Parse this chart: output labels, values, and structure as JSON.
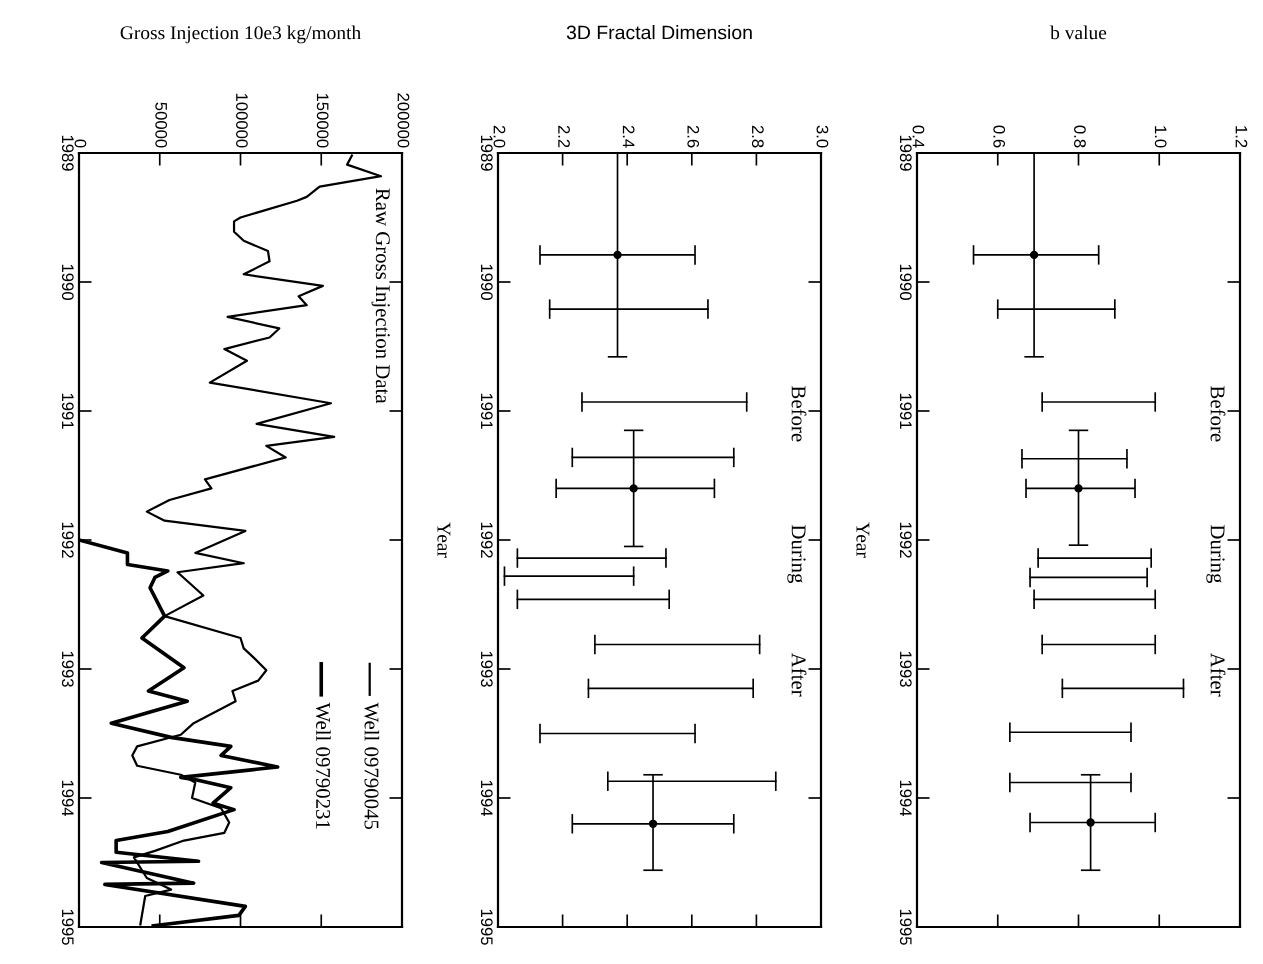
{
  "chart_data": [
    {
      "type": "line",
      "title": "Gross Injection 10e3 kg/month",
      "xlim": [
        0,
        200000
      ],
      "xticks": [
        0,
        50000,
        100000,
        150000,
        200000
      ],
      "ylim": [
        1995,
        1989
      ],
      "yticks": [
        1989,
        1990,
        1991,
        1992,
        1993,
        1994,
        1995
      ],
      "legend": "bottom right",
      "annotations": [
        "Raw Gross Injection Data"
      ],
      "series": [
        {
          "name": "Well 09790045",
          "color": "#000000",
          "x": [
            169000,
            166000,
            187000,
            149000,
            141000,
            135000,
            100000,
            96000,
            96000,
            102000,
            117000,
            118000,
            102000,
            151000,
            136000,
            141000,
            92000,
            124000,
            118000,
            90000,
            104000,
            81000,
            156000,
            110000,
            158000,
            116000,
            128000,
            78000,
            82000,
            56000,
            42000,
            53000,
            103000,
            72000,
            102000,
            61000,
            77000,
            53000,
            100000,
            102000,
            108000,
            116000,
            111000,
            95000,
            97000,
            71000,
            63000,
            36000,
            33000,
            36000,
            63000,
            72000,
            70000,
            88000,
            93000,
            90000,
            65000,
            47000,
            34000,
            42000,
            57000,
            41000,
            38000
          ],
          "values": [
            1989.02,
            1989.09,
            1989.18,
            1989.26,
            1989.34,
            1989.37,
            1989.5,
            1989.53,
            1989.61,
            1989.68,
            1989.76,
            1989.84,
            1989.94,
            1990.03,
            1990.11,
            1990.18,
            1990.27,
            1990.36,
            1990.43,
            1990.52,
            1990.61,
            1990.78,
            1990.94,
            1991.1,
            1991.2,
            1991.27,
            1991.36,
            1991.53,
            1991.6,
            1991.69,
            1991.78,
            1991.85,
            1991.93,
            1992.1,
            1992.18,
            1992.25,
            1992.43,
            1992.59,
            1992.76,
            1992.84,
            1992.91,
            1993.01,
            1993.09,
            1993.17,
            1993.25,
            1993.42,
            1993.51,
            1993.6,
            1993.67,
            1993.75,
            1993.82,
            1993.88,
            1994.0,
            1994.08,
            1994.19,
            1994.27,
            1994.33,
            1994.41,
            1994.46,
            1994.62,
            1994.71,
            1994.76,
            1994.98
          ]
        },
        {
          "name": "Well 09790231",
          "color": "#000000",
          "x": [
            0,
            30000,
            30000,
            55000,
            47000,
            44000,
            53000,
            39000,
            65000,
            43000,
            67000,
            20000,
            57000,
            94000,
            88000,
            123000,
            63000,
            73000,
            94000,
            83000,
            96000,
            55000,
            23000,
            23000,
            74000,
            14000,
            71000,
            16000,
            103000,
            99000,
            46000
          ],
          "values": [
            1992.0,
            1992.1,
            1992.19,
            1992.24,
            1992.29,
            1992.37,
            1992.59,
            1992.76,
            1992.99,
            1993.17,
            1993.25,
            1993.42,
            1993.53,
            1993.6,
            1993.67,
            1993.76,
            1993.84,
            1993.86,
            1993.92,
            1994.04,
            1994.09,
            1994.26,
            1994.33,
            1994.42,
            1994.49,
            1994.5,
            1994.66,
            1994.67,
            1994.84,
            1994.91,
            1994.99
          ]
        }
      ]
    },
    {
      "type": "scatter",
      "title": "3D Fractal Dimension",
      "ylabel": "Year",
      "xlim": [
        2.0,
        3.0
      ],
      "xticks": [
        {
          "value": 2,
          "label": "2.0"
        },
        2.2,
        2.4,
        2.6,
        2.8,
        {
          "value": 3,
          "label": "3.0"
        }
      ],
      "ylim": [
        1995,
        1989
      ],
      "yticks": [
        1989,
        1990,
        1991,
        1992,
        1993,
        1994,
        1995
      ],
      "annotations": [
        "Before",
        "During",
        "After"
      ],
      "series": [
        {
          "color": "#000000",
          "marker": "circle",
          "x": [
            2.37,
            2.42,
            2.48
          ],
          "values": [
            1989.79,
            1991.6,
            1994.2
          ],
          "xerrors": [
            [
              2.13,
              2.61
            ],
            [
              2.18,
              2.67
            ],
            [
              2.23,
              2.73
            ]
          ],
          "errors": [
            [
              1989.0,
              1990.58
            ],
            [
              1991.15,
              1992.05
            ],
            [
              1993.82,
              1994.56
            ]
          ]
        },
        {
          "type": "line",
          "color": "#000000",
          "x": [
            2.16,
            2.65
          ],
          "values": [
            1990.21,
            1990.21
          ]
        },
        {
          "type": "line",
          "color": "#000000",
          "x": [
            2.26,
            2.77
          ],
          "values": [
            1990.93,
            1990.93
          ]
        },
        {
          "type": "line",
          "color": "#000000",
          "x": [
            2.23,
            2.73
          ],
          "values": [
            1991.36,
            1991.36
          ]
        },
        {
          "type": "line",
          "color": "#000000",
          "x": [
            2.06,
            2.52
          ],
          "values": [
            1992.14,
            1992.14
          ]
        },
        {
          "type": "line",
          "color": "#000000",
          "x": [
            2.02,
            2.42
          ],
          "values": [
            1992.28,
            1992.28
          ]
        },
        {
          "type": "line",
          "color": "#000000",
          "x": [
            2.06,
            2.53
          ],
          "values": [
            1992.46,
            1992.46
          ]
        },
        {
          "type": "line",
          "color": "#000000",
          "x": [
            2.3,
            2.81
          ],
          "values": [
            1992.81,
            1992.81
          ]
        },
        {
          "type": "line",
          "color": "#000000",
          "x": [
            2.28,
            2.79
          ],
          "values": [
            1993.15,
            1993.15
          ]
        },
        {
          "type": "line",
          "color": "#000000",
          "x": [
            2.13,
            2.61
          ],
          "values": [
            1993.5,
            1993.5
          ]
        },
        {
          "type": "line",
          "color": "#000000",
          "x": [
            2.34,
            2.86
          ],
          "values": [
            1993.87,
            1993.87
          ]
        }
      ]
    },
    {
      "type": "scatter",
      "title": "b value",
      "ylabel": "Year",
      "xlim": [
        0.4,
        1.2
      ],
      "xticks": [
        0.4,
        0.6,
        0.8,
        {
          "value": 1,
          "label": "1.0"
        },
        1.2
      ],
      "ylim": [
        1995,
        1989
      ],
      "yticks": [
        1989,
        1990,
        1991,
        1992,
        1993,
        1994,
        1995
      ],
      "annotations": [
        "Before",
        "During",
        "After"
      ],
      "series": [
        {
          "color": "#000000",
          "marker": "circle",
          "x": [
            0.69,
            0.8,
            0.83
          ],
          "values": [
            1989.79,
            1991.6,
            1994.19
          ],
          "xerrors": [
            [
              0.54,
              0.85
            ],
            [
              0.67,
              0.94
            ],
            [
              0.68,
              0.99
            ]
          ],
          "errors": [
            [
              1989.0,
              1990.58
            ],
            [
              1991.15,
              1992.04
            ],
            [
              1993.82,
              1994.56
            ]
          ]
        },
        {
          "type": "line",
          "color": "#000000",
          "x": [
            0.6,
            0.89
          ],
          "values": [
            1990.21,
            1990.21
          ]
        },
        {
          "type": "line",
          "color": "#000000",
          "x": [
            0.71,
            0.99
          ],
          "values": [
            1990.93,
            1990.93
          ]
        },
        {
          "type": "line",
          "color": "#000000",
          "x": [
            0.66,
            0.92
          ],
          "values": [
            1991.37,
            1991.37
          ]
        },
        {
          "type": "line",
          "color": "#000000",
          "x": [
            0.7,
            0.98
          ],
          "values": [
            1992.14,
            1992.14
          ]
        },
        {
          "type": "line",
          "color": "#000000",
          "x": [
            0.68,
            0.97
          ],
          "values": [
            1992.29,
            1992.29
          ]
        },
        {
          "type": "line",
          "color": "#000000",
          "x": [
            0.69,
            0.99
          ],
          "values": [
            1992.46,
            1992.46
          ]
        },
        {
          "type": "line",
          "color": "#000000",
          "x": [
            0.71,
            0.99
          ],
          "values": [
            1992.81,
            1992.81
          ]
        },
        {
          "type": "line",
          "color": "#000000",
          "x": [
            0.76,
            1.06
          ],
          "values": [
            1993.15,
            1993.15
          ]
        },
        {
          "type": "line",
          "color": "#000000",
          "x": [
            0.63,
            0.93
          ],
          "values": [
            1993.49,
            1993.49
          ]
        },
        {
          "type": "line",
          "color": "#000000",
          "x": [
            0.63,
            0.93
          ],
          "values": [
            1993.88,
            1993.88
          ]
        }
      ]
    }
  ]
}
